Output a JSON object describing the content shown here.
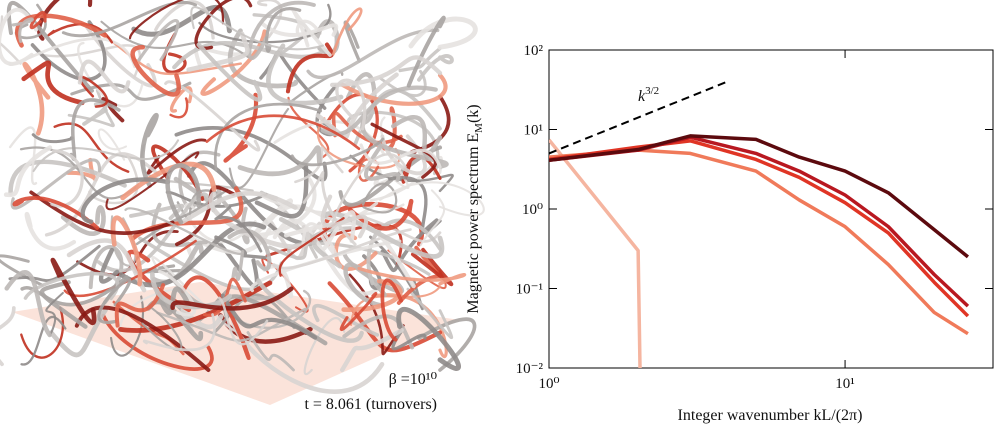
{
  "annotations": {
    "beta": "β =10¹⁰",
    "time": "t = 8.061 (turnovers)"
  },
  "chart_data": {
    "type": "line",
    "xlabel": "Integer wavenumber kL/(2π)",
    "ylabel": {
      "text": "Magnetic power spectrum E",
      "sub": "M",
      "tail": "(k)"
    },
    "xscale": "log",
    "yscale": "log",
    "xlim": [
      1,
      31.6
    ],
    "ylim": [
      0.01,
      100
    ],
    "xticks": [
      {
        "value": 1,
        "label": "10⁰"
      },
      {
        "value": 10,
        "label": "10¹"
      }
    ],
    "yticks": [
      {
        "value": 0.01,
        "label": "10⁻²"
      },
      {
        "value": 0.1,
        "label": "10⁻¹"
      },
      {
        "value": 1,
        "label": "10⁰"
      },
      {
        "value": 10,
        "label": "10¹"
      },
      {
        "value": 100,
        "label": "10²"
      }
    ],
    "series": [
      {
        "color": "#f5b5a0",
        "x": [
          1,
          2,
          2.05
        ],
        "values": [
          7.4,
          0.3,
          0.001
        ]
      },
      {
        "color": "#f07a5a",
        "x": [
          1,
          2,
          3,
          5,
          7,
          10,
          14,
          20,
          26
        ],
        "values": [
          4.5,
          5.5,
          5.0,
          3.0,
          1.3,
          0.6,
          0.2,
          0.05,
          0.027
        ]
      },
      {
        "color": "#e03525",
        "x": [
          1,
          2,
          3,
          5,
          7,
          10,
          14,
          20,
          26
        ],
        "values": [
          4.2,
          6.0,
          7.2,
          4.2,
          2.5,
          1.2,
          0.5,
          0.12,
          0.045
        ]
      },
      {
        "color": "#b81820",
        "x": [
          1,
          2,
          3,
          5,
          7,
          10,
          14,
          20,
          26
        ],
        "values": [
          4.1,
          5.5,
          8.0,
          5.0,
          3.0,
          1.5,
          0.6,
          0.15,
          0.06
        ]
      },
      {
        "color": "#5c0a0e",
        "x": [
          1,
          2,
          3,
          5,
          7,
          10,
          14,
          20,
          26
        ],
        "values": [
          4.1,
          5.6,
          8.3,
          7.5,
          4.5,
          3.0,
          1.6,
          0.55,
          0.25
        ]
      }
    ],
    "reference": {
      "x": [
        1,
        4
      ],
      "values": [
        5,
        40
      ],
      "label": {
        "base": "k",
        "sup": "3/2"
      }
    }
  }
}
